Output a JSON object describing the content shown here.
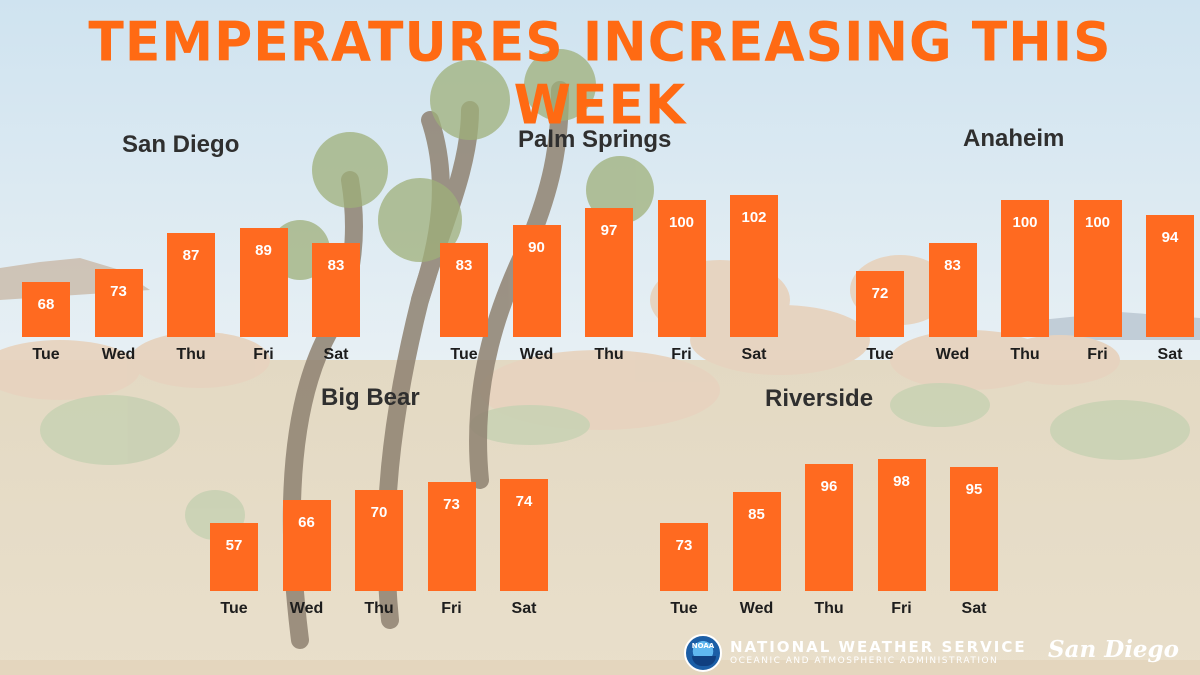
{
  "title": "Temperatures Increasing This Week",
  "footer": {
    "agency": "NATIONAL WEATHER SERVICE",
    "sub_agency": "OCEANIC AND ATMOSPHERIC ADMINISTRATION",
    "office": "San Diego",
    "logo_text": "NOAA"
  },
  "colors": {
    "bar": "#ff6a20",
    "title": "#ff6a13"
  },
  "chart_data": [
    {
      "type": "bar",
      "title": "San Diego",
      "categories": [
        "Tue",
        "Wed",
        "Thu",
        "Fri",
        "Sat"
      ],
      "values": [
        68,
        73,
        87,
        89,
        83
      ]
    },
    {
      "type": "bar",
      "title": "Palm Springs",
      "categories": [
        "Tue",
        "Wed",
        "Thu",
        "Fri",
        "Sat"
      ],
      "values": [
        83,
        90,
        97,
        100,
        102
      ]
    },
    {
      "type": "bar",
      "title": "Anaheim",
      "categories": [
        "Tue",
        "Wed",
        "Thu",
        "Fri",
        "Sat"
      ],
      "values": [
        72,
        83,
        100,
        100,
        94
      ]
    },
    {
      "type": "bar",
      "title": "Big Bear",
      "categories": [
        "Tue",
        "Wed",
        "Thu",
        "Fri",
        "Sat"
      ],
      "values": [
        57,
        66,
        70,
        73,
        74
      ]
    },
    {
      "type": "bar",
      "title": "Riverside",
      "categories": [
        "Tue",
        "Wed",
        "Thu",
        "Fri",
        "Sat"
      ],
      "values": [
        73,
        85,
        96,
        98,
        95
      ]
    }
  ]
}
